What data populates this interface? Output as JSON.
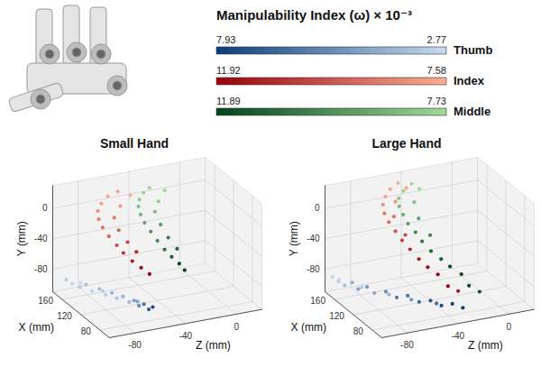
{
  "colorbar": {
    "title": "Manipulability Index (ω) × 10⁻³",
    "bars": [
      {
        "name": "Thumb",
        "range": [
          7.93,
          2.77
        ],
        "colors": [
          "#0b3d7a",
          "#c6dbef"
        ]
      },
      {
        "name": "Index",
        "range": [
          11.92,
          7.58
        ],
        "colors": [
          "#99000d",
          "#fcae91"
        ]
      },
      {
        "name": "Middle",
        "range": [
          11.89,
          7.73
        ],
        "colors": [
          "#00441b",
          "#a1d99b"
        ]
      }
    ]
  },
  "chart_data": [
    {
      "type": "scatter3d",
      "title": "Small Hand",
      "xlabel": "X (mm)",
      "ylabel": "Y (mm)",
      "zlabel": "Z (mm)",
      "xlim": [
        60,
        180
      ],
      "ylim": [
        -110,
        30
      ],
      "zlim": [
        -100,
        20
      ],
      "xticks": [
        80,
        120,
        160
      ],
      "yticks": [
        -80,
        -40,
        0
      ],
      "zticks": [
        -80,
        -40,
        0
      ],
      "grid": true,
      "series": [
        {
          "name": "Thumb",
          "x": [
            165,
            160,
            155,
            150,
            145,
            140,
            135,
            130,
            125,
            120,
            115,
            110,
            105,
            100,
            95,
            92,
            148,
            128,
            112,
            100
          ],
          "y": [
            -88,
            -92,
            -95,
            -90,
            -97,
            -93,
            -99,
            -95,
            -100,
            -96,
            -102,
            -98,
            -103,
            -99,
            -104,
            -100,
            -85,
            -89,
            -92,
            -94
          ],
          "z": [
            -95,
            -92,
            -88,
            -85,
            -82,
            -78,
            -75,
            -72,
            -70,
            -67,
            -64,
            -62,
            -60,
            -58,
            -56,
            -54,
            -90,
            -80,
            -70,
            -63
          ],
          "values": [
            3.2,
            3.0,
            3.4,
            3.6,
            3.1,
            3.8,
            3.3,
            4.0,
            3.5,
            4.3,
            3.9,
            4.8,
            5.5,
            6.2,
            6.9,
            7.5,
            2.9,
            3.2,
            3.6,
            4.5
          ]
        },
        {
          "name": "Index",
          "x": [
            150,
            155,
            158,
            160,
            158,
            155,
            150,
            144,
            138,
            130,
            122,
            115,
            145,
            150,
            152,
            148,
            140,
            132
          ],
          "y": [
            25,
            18,
            8,
            -2,
            -12,
            -22,
            -32,
            -42,
            -50,
            -58,
            -64,
            -70,
            20,
            5,
            -10,
            -25,
            -38,
            -48
          ],
          "z": [
            -60,
            -66,
            -70,
            -72,
            -72,
            -70,
            -67,
            -63,
            -60,
            -56,
            -52,
            -48,
            -52,
            -58,
            -62,
            -60,
            -56,
            -52
          ],
          "values": [
            7.8,
            7.7,
            7.9,
            8.2,
            8.6,
            9.0,
            9.5,
            10.0,
            10.6,
            11.2,
            11.6,
            11.9,
            7.6,
            8.0,
            8.8,
            9.3,
            10.2,
            10.9
          ]
        },
        {
          "name": "Middle",
          "x": [
            150,
            155,
            158,
            160,
            158,
            155,
            150,
            144,
            137,
            130,
            122,
            116,
            145,
            150,
            152,
            148,
            140,
            132
          ],
          "y": [
            22,
            14,
            4,
            -6,
            -16,
            -26,
            -36,
            -46,
            -55,
            -62,
            -68,
            -74,
            18,
            2,
            -12,
            -28,
            -42,
            -54
          ],
          "z": [
            -35,
            -38,
            -40,
            -40,
            -39,
            -37,
            -34,
            -31,
            -28,
            -25,
            -22,
            -20,
            -25,
            -28,
            -30,
            -27,
            -24,
            -20
          ],
          "values": [
            7.8,
            7.9,
            8.1,
            8.4,
            8.8,
            9.2,
            9.7,
            10.2,
            10.8,
            11.3,
            11.7,
            11.9,
            7.74,
            8.0,
            8.6,
            9.4,
            10.4,
            11.0
          ]
        }
      ]
    },
    {
      "type": "scatter3d",
      "title": "Large Hand",
      "xlabel": "X (mm)",
      "ylabel": "Y (mm)",
      "zlabel": "Z (mm)",
      "xlim": [
        60,
        180
      ],
      "ylim": [
        -110,
        30
      ],
      "zlim": [
        -100,
        20
      ],
      "xticks": [
        80,
        120,
        160
      ],
      "yticks": [
        -80,
        -40,
        0
      ],
      "zticks": [
        -80,
        -40,
        0
      ],
      "grid": true,
      "series": [
        {
          "name": "Thumb",
          "x": [
            170,
            165,
            160,
            155,
            150,
            145,
            140,
            132,
            125,
            118,
            110,
            102,
            95,
            88,
            82,
            158,
            140,
            120,
            105,
            92
          ],
          "y": [
            -86,
            -90,
            -94,
            -89,
            -96,
            -92,
            -99,
            -95,
            -101,
            -97,
            -103,
            -99,
            -104,
            -100,
            -104,
            -84,
            -88,
            -92,
            -95,
            -98
          ],
          "z": [
            -98,
            -95,
            -92,
            -88,
            -85,
            -80,
            -76,
            -70,
            -64,
            -58,
            -52,
            -46,
            -40,
            -34,
            -28,
            -97,
            -86,
            -72,
            -60,
            -45
          ],
          "values": [
            3.0,
            3.4,
            3.8,
            4.2,
            4.6,
            5.0,
            4.5,
            5.3,
            5.8,
            6.2,
            6.6,
            7.0,
            7.4,
            7.7,
            7.9,
            2.8,
            3.3,
            4.0,
            5.0,
            6.4
          ]
        },
        {
          "name": "Index",
          "x": [
            160,
            163,
            165,
            165,
            162,
            158,
            152,
            146,
            140,
            132,
            124,
            116,
            156,
            160,
            158,
            150,
            100,
            108
          ],
          "y": [
            28,
            20,
            10,
            0,
            -10,
            -20,
            -30,
            -40,
            -50,
            -60,
            -68,
            -75,
            22,
            4,
            -14,
            -36,
            -92,
            -88
          ],
          "z": [
            -50,
            -55,
            -58,
            -60,
            -60,
            -58,
            -55,
            -52,
            -48,
            -44,
            -40,
            -35,
            -45,
            -52,
            -54,
            -48,
            -25,
            -30
          ],
          "values": [
            7.6,
            7.8,
            8.0,
            8.4,
            8.8,
            9.3,
            9.8,
            10.3,
            10.8,
            11.3,
            11.7,
            11.9,
            7.7,
            8.2,
            9.0,
            10.0,
            11.5,
            11.8
          ]
        },
        {
          "name": "Middle",
          "x": [
            158,
            162,
            164,
            163,
            160,
            155,
            150,
            144,
            136,
            128,
            120,
            112,
            155,
            158,
            154,
            146,
            95,
            104
          ],
          "y": [
            25,
            15,
            5,
            -5,
            -15,
            -25,
            -35,
            -45,
            -55,
            -63,
            -70,
            -78,
            18,
            0,
            -20,
            -40,
            -95,
            -90
          ],
          "z": [
            -40,
            -45,
            -48,
            -48,
            -46,
            -44,
            -40,
            -37,
            -33,
            -28,
            -24,
            -18,
            -35,
            -38,
            -36,
            -30,
            -10,
            -15
          ],
          "values": [
            7.8,
            8.0,
            8.3,
            8.6,
            9.0,
            9.5,
            10.0,
            10.5,
            11.0,
            11.4,
            11.7,
            11.9,
            7.74,
            8.4,
            9.2,
            10.3,
            11.6,
            11.8
          ]
        }
      ]
    }
  ]
}
